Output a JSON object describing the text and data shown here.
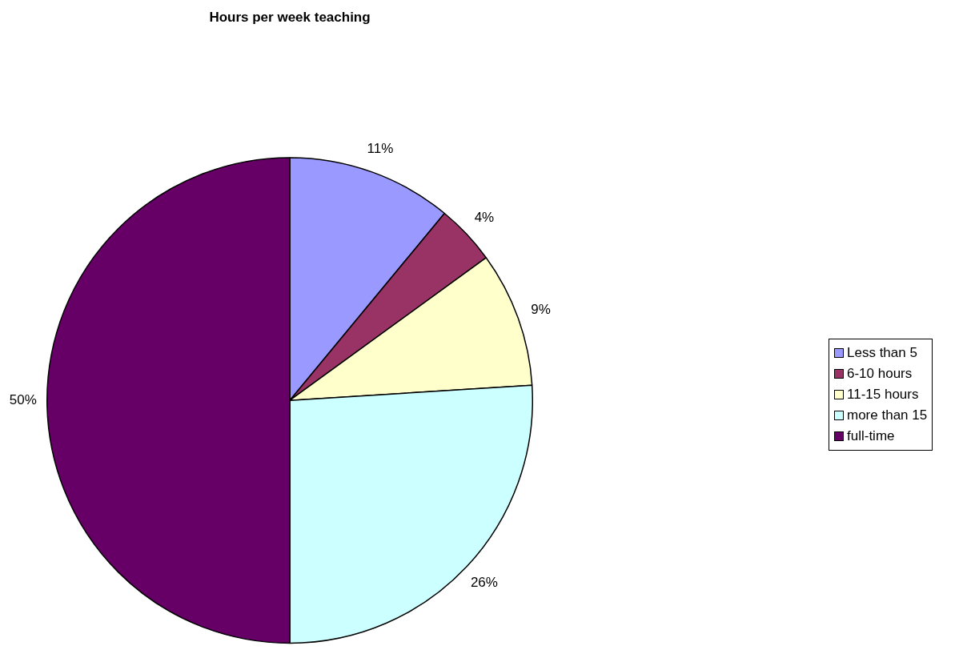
{
  "chart_data": {
    "type": "pie",
    "title": "Hours per week teaching",
    "categories": [
      "Less than 5",
      "6-10 hours",
      "11-15 hours",
      "more than 15",
      "full-time"
    ],
    "values": [
      11,
      4,
      9,
      26,
      50
    ],
    "colors": [
      "#9999ff",
      "#993366",
      "#ffffcc",
      "#ccffff",
      "#660066"
    ],
    "value_labels": [
      "11%",
      "4%",
      "9%",
      "26%",
      "50%"
    ],
    "legend": "right"
  }
}
